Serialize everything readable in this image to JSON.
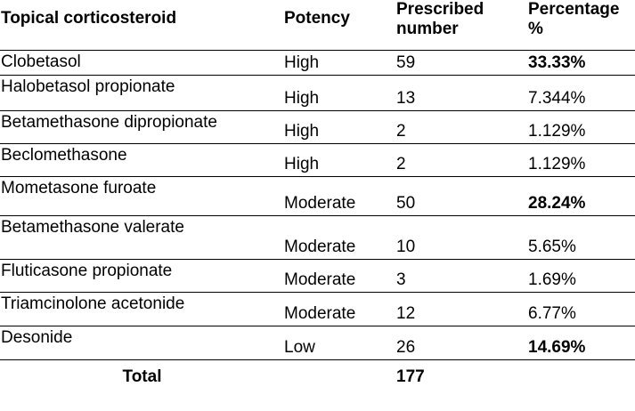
{
  "table": {
    "headers": {
      "drug": "Topical corticosteroid",
      "potency": "Potency",
      "prescribed_line1": "Prescribed",
      "prescribed_line2": "number",
      "percentage_line1": "Percentage",
      "percentage_line2": "%"
    },
    "rows": [
      {
        "drug": "Clobetasol",
        "potency": "High",
        "number": "59",
        "percentage": "33.33%",
        "emphasis": true
      },
      {
        "drug": "Halobetasol propionate",
        "potency": "High",
        "number": "13",
        "percentage": "7.344%",
        "emphasis": false
      },
      {
        "drug": "Betamethasone dipropionate",
        "potency": "High",
        "number": "2",
        "percentage": "1.129%",
        "emphasis": false
      },
      {
        "drug": "Beclomethasone",
        "potency": "High",
        "number": "2",
        "percentage": "1.129%",
        "emphasis": false
      },
      {
        "drug": "Mometasone furoate",
        "potency": "Moderate",
        "number": "50",
        "percentage": "28.24%",
        "emphasis": true
      },
      {
        "drug": "Betamethasone valerate",
        "potency": "Moderate",
        "number": "10",
        "percentage": "5.65%",
        "emphasis": false
      },
      {
        "drug": "Fluticasone propionate",
        "potency": "Moderate",
        "number": "3",
        "percentage": "1.69%",
        "emphasis": false
      },
      {
        "drug": "Triamcinolone acetonide",
        "potency": "Moderate",
        "number": "12",
        "percentage": "6.77%",
        "emphasis": false
      },
      {
        "drug": "Desonide",
        "potency": "Low",
        "number": "26",
        "percentage": "14.69%",
        "emphasis": true
      }
    ],
    "total": {
      "label": "Total",
      "number": "177"
    }
  }
}
